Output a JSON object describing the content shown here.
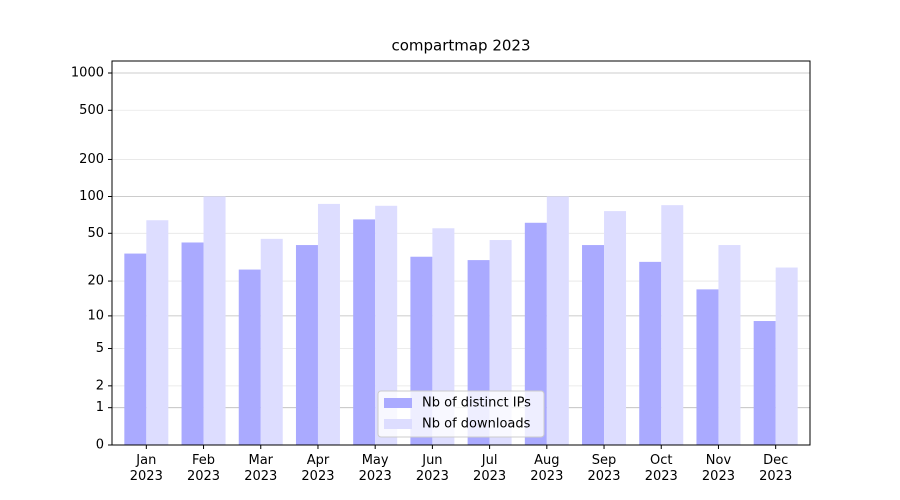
{
  "chart_data": {
    "type": "bar",
    "title": "compartmap 2023",
    "categories": [
      "Jan\n2023",
      "Feb\n2023",
      "Mar\n2023",
      "Apr\n2023",
      "May\n2023",
      "Jun\n2023",
      "Jul\n2023",
      "Aug\n2023",
      "Sep\n2023",
      "Oct\n2023",
      "Nov\n2023",
      "Dec\n2023"
    ],
    "series": [
      {
        "name": "Nb of distinct IPs",
        "color": "#aaaaff",
        "values": [
          34,
          42,
          25,
          40,
          65,
          32,
          30,
          61,
          40,
          29,
          17,
          9
        ]
      },
      {
        "name": "Nb of downloads",
        "color": "#ddddff",
        "values": [
          64,
          100,
          45,
          87,
          84,
          55,
          44,
          100,
          76,
          85,
          40,
          26
        ]
      }
    ],
    "yscale": "log1p",
    "ylim": [
      0,
      1250
    ],
    "yticks": [
      0,
      1,
      2,
      5,
      10,
      20,
      50,
      100,
      200,
      500,
      1000
    ],
    "grid": true,
    "legend": "lower center"
  }
}
